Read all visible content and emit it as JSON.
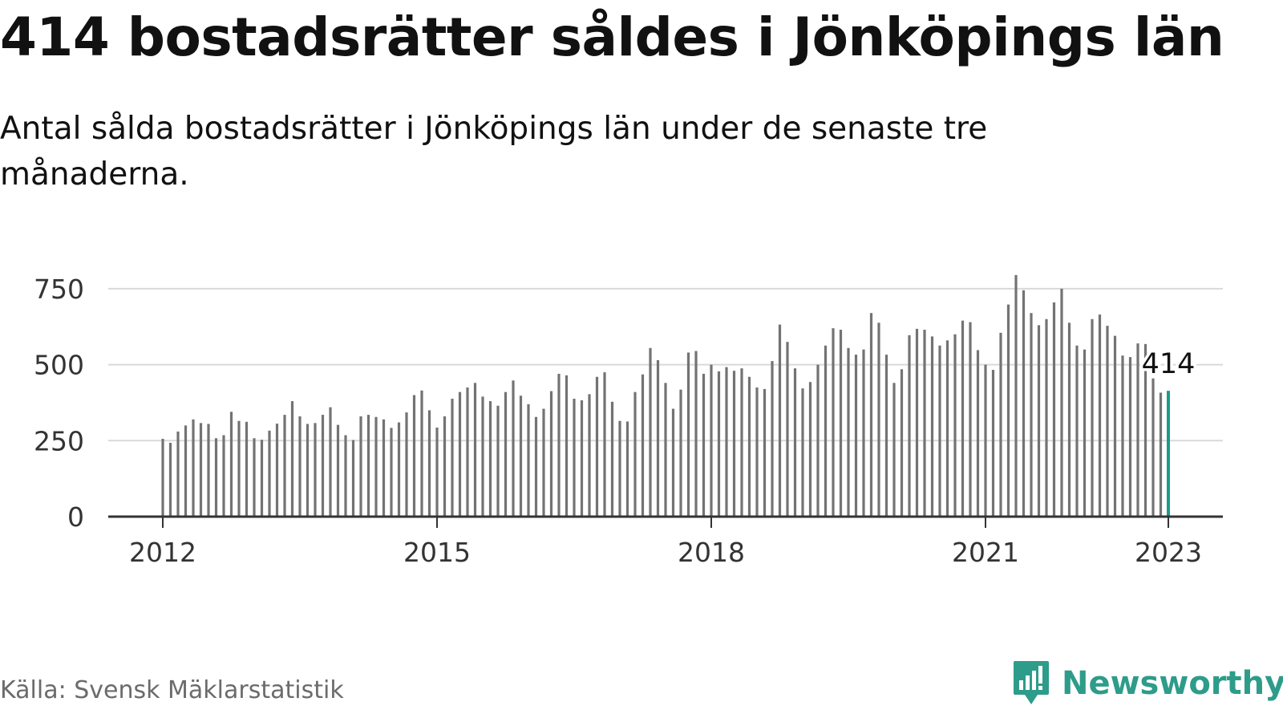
{
  "title": "414 bostadsrätter såldes i Jönköpings län",
  "subtitle": "Antal sålda bostadsrätter i Jönköpings län under de senaste tre månaderna.",
  "source": "Källa: Svensk Mäklarstatistik",
  "brand": {
    "name": "Newsworthy",
    "icon": "newsworthy-logo-icon",
    "color": "#2e9c8a"
  },
  "colors": {
    "bar": "#737373",
    "highlight": "#1a9a8c",
    "grid": "#d9d9d9",
    "axis": "#333333"
  },
  "chart_data": {
    "type": "bar",
    "title": "",
    "xlabel": "",
    "ylabel": "",
    "x_start": "2012-01",
    "x_end": "2023-01",
    "ylim": [
      0,
      820
    ],
    "y_ticks": [
      0,
      250,
      500,
      750
    ],
    "x_ticks": [
      "2012",
      "2015",
      "2018",
      "2021",
      "2023"
    ],
    "grid": true,
    "highlight_label": "414",
    "series": [
      {
        "values": [
          256,
          243,
          280,
          300,
          320,
          308,
          305,
          258,
          268,
          345,
          315,
          312,
          258,
          253,
          283,
          306,
          335,
          380,
          330,
          305,
          308,
          335,
          360,
          302,
          268,
          252,
          330,
          335,
          328,
          320,
          292,
          310,
          343,
          400,
          415,
          350,
          293,
          330,
          388,
          410,
          425,
          440,
          395,
          380,
          365,
          410,
          448,
          398,
          370,
          328,
          355,
          413,
          470,
          465,
          388,
          383,
          403,
          460,
          475,
          378,
          315,
          313,
          410,
          468,
          555,
          515,
          440,
          355,
          418,
          540,
          545,
          470,
          500,
          478,
          492,
          480,
          488,
          460,
          425,
          420,
          512,
          632,
          575,
          488,
          422,
          443,
          500,
          563,
          620,
          615,
          555,
          533,
          550,
          670,
          638,
          533,
          440,
          485,
          597,
          618,
          615,
          593,
          563,
          580,
          600,
          645,
          640,
          548,
          500,
          483,
          605,
          698,
          795,
          745,
          670,
          630,
          650,
          705,
          750,
          638,
          563,
          550,
          650,
          665,
          628,
          595,
          530,
          525,
          570,
          568,
          455,
          408,
          414
        ]
      }
    ]
  }
}
